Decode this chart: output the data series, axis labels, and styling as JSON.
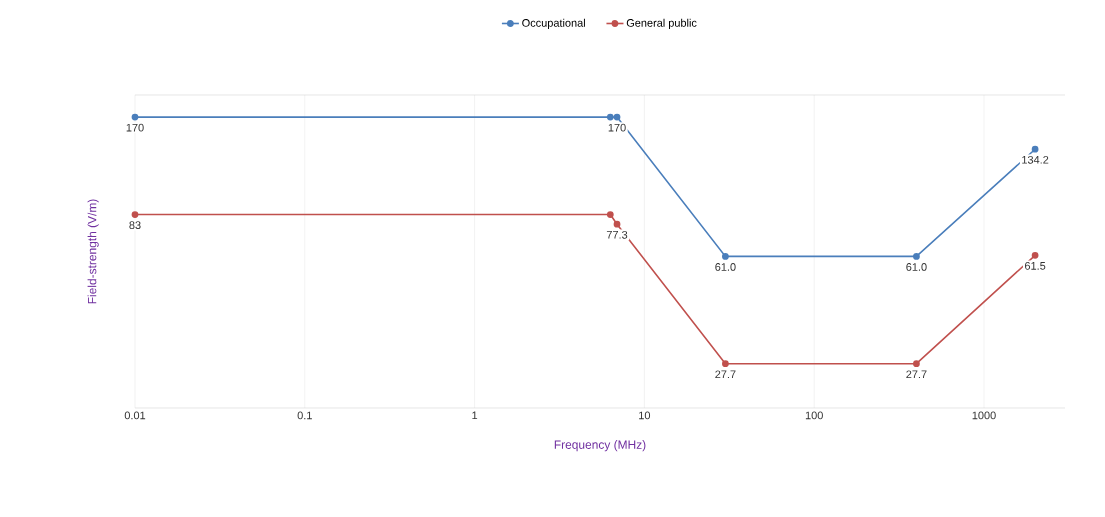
{
  "chart_data": {
    "type": "line",
    "xlabel": "Frequency (MHz)",
    "ylabel": "Field-strength (V/m)",
    "log": "xy",
    "grid": "x",
    "legend": "top",
    "marker": "circle",
    "line_style": "solid",
    "tick_labels": "x",
    "data_labels": true,
    "xlim": [
      0.01,
      3000
    ],
    "xticks": [
      0.01,
      0.1,
      1,
      10,
      100,
      1000
    ],
    "ylim": [
      20,
      200
    ],
    "series": [
      {
        "name": "Occupational",
        "color": "#4a7ebb",
        "x": [
          0.01,
          6.3,
          6.9,
          30,
          400,
          2000
        ],
        "values": [
          170,
          170,
          170,
          61.0,
          61.0,
          134.2
        ],
        "value_labels": [
          "170",
          null,
          "170",
          "61.0",
          "61.0",
          "134.2"
        ]
      },
      {
        "name": "General public",
        "color": "#c0504d",
        "x": [
          0.01,
          6.3,
          6.9,
          30,
          400,
          2000
        ],
        "values": [
          83,
          83,
          77.3,
          27.7,
          27.7,
          61.5
        ],
        "value_labels": [
          "83",
          null,
          "77.3",
          "27.7",
          "27.7",
          "61.5"
        ]
      }
    ]
  }
}
